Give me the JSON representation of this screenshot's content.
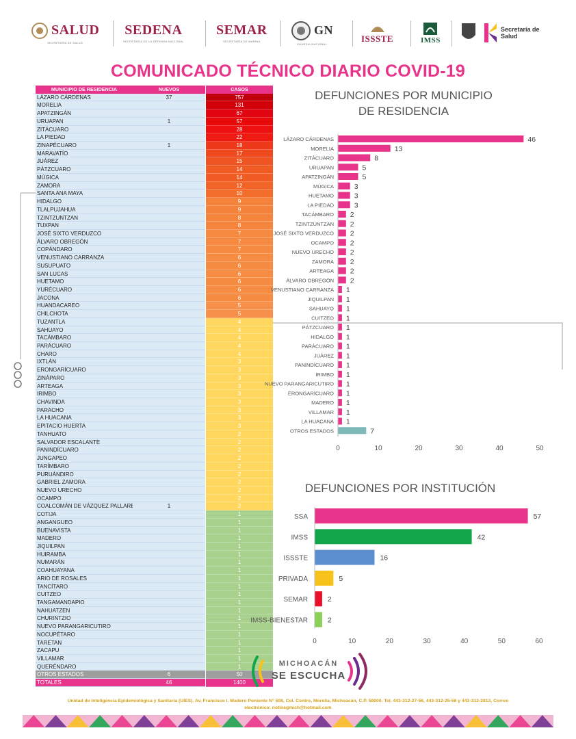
{
  "header": {
    "logos": [
      {
        "name": "SALUD",
        "sub": "SECRETARÍA DE SALUD",
        "color": "#9b2247"
      },
      {
        "name": "SEDENA",
        "sub": "SECRETARÍA DE LA DEFENSA NACIONAL",
        "color": "#9b2247"
      },
      {
        "name": "SEMAR",
        "sub": "SECRETARÍA DE MARINA",
        "color": "#9b2247"
      },
      {
        "name": "GN",
        "sub": "GUARDIA NACIONAL",
        "color": "#333333"
      },
      {
        "name": "ISSSTE",
        "sub": "",
        "color": "#9b2247"
      },
      {
        "name": "IMSS",
        "sub": "",
        "color": "#1a5c3a"
      },
      {
        "name": "Secretaría de Salud",
        "sub": "",
        "color": "#333333"
      }
    ]
  },
  "title": "COMUNICADO TÉCNICO DIARIO COVID-19",
  "table": {
    "headers": {
      "municipio": "MUNICIPIO DE RESIDENCIA",
      "nuevos": "NUEVOS",
      "casos": "CASOS"
    },
    "rows": [
      {
        "m": "LÁZARO CÁRDENAS",
        "n": "37",
        "c": "757",
        "color": "#c0000a"
      },
      {
        "m": "MORELIA",
        "n": "",
        "c": "131",
        "color": "#d20008"
      },
      {
        "m": "APATZINGÁN",
        "n": "",
        "c": "67",
        "color": "#e00510"
      },
      {
        "m": "URUAPAN",
        "n": "1",
        "c": "57",
        "color": "#e80a0a"
      },
      {
        "m": "ZITÁCUARO",
        "n": "",
        "c": "28",
        "color": "#ee1010"
      },
      {
        "m": "LA PIEDAD",
        "n": "",
        "c": "22",
        "color": "#ef1a12"
      },
      {
        "m": "ZINAPÉCUARO",
        "n": "1",
        "c": "18",
        "color": "#ee3a1a"
      },
      {
        "m": "MARAVATÍO",
        "n": "",
        "c": "17",
        "color": "#ee4a1e"
      },
      {
        "m": "JUÁREZ",
        "n": "",
        "c": "15",
        "color": "#ee5522"
      },
      {
        "m": "PÁTZCUARO",
        "n": "",
        "c": "14",
        "color": "#f05c24"
      },
      {
        "m": "MÚGICA",
        "n": "",
        "c": "14",
        "color": "#f05c24"
      },
      {
        "m": "ZAMORA",
        "n": "",
        "c": "12",
        "color": "#f26428"
      },
      {
        "m": "SANTA ANA MAYA",
        "n": "",
        "c": "10",
        "color": "#f36e2b"
      },
      {
        "m": "HIDALGO",
        "n": "",
        "c": "9",
        "color": "#f5823a"
      },
      {
        "m": "TLALPUJAHUA",
        "n": "",
        "c": "9",
        "color": "#f5823a"
      },
      {
        "m": "TZINTZUNTZAN",
        "n": "",
        "c": "8",
        "color": "#f5853c"
      },
      {
        "m": "TUXPAN",
        "n": "",
        "c": "8",
        "color": "#f5853c"
      },
      {
        "m": "JOSÉ SIXTO VERDUZCO",
        "n": "",
        "c": "7",
        "color": "#f58a40"
      },
      {
        "m": "ÁLVARO OBREGÓN",
        "n": "",
        "c": "7",
        "color": "#f58a40"
      },
      {
        "m": "COPÁNDARO",
        "n": "",
        "c": "7",
        "color": "#f58a40"
      },
      {
        "m": "VENUSTIANO CARRANZA",
        "n": "",
        "c": "6",
        "color": "#f58c42"
      },
      {
        "m": "SUSUPUATO",
        "n": "",
        "c": "6",
        "color": "#f58c42"
      },
      {
        "m": "SAN LUCAS",
        "n": "",
        "c": "6",
        "color": "#f58c42"
      },
      {
        "m": "HUETAMO",
        "n": "",
        "c": "6",
        "color": "#f58c42"
      },
      {
        "m": "YURÉCUARO",
        "n": "",
        "c": "6",
        "color": "#f58c42"
      },
      {
        "m": "JACONA",
        "n": "",
        "c": "6",
        "color": "#f58c42"
      },
      {
        "m": "HUANDACAREO",
        "n": "",
        "c": "5",
        "color": "#f6904a"
      },
      {
        "m": "CHILCHOTA",
        "n": "",
        "c": "5",
        "color": "#f6904a"
      },
      {
        "m": "TUZANTLA",
        "n": "",
        "c": "4",
        "color": "#ffd75e"
      },
      {
        "m": "SAHUAYO",
        "n": "",
        "c": "4",
        "color": "#ffd75e"
      },
      {
        "m": "TACÁMBARO",
        "n": "",
        "c": "4",
        "color": "#ffd75e"
      },
      {
        "m": "PARÁCUARO",
        "n": "",
        "c": "4",
        "color": "#ffd75e"
      },
      {
        "m": "CHARO",
        "n": "",
        "c": "4",
        "color": "#ffd75e"
      },
      {
        "m": "IXTLÁN",
        "n": "",
        "c": "3",
        "color": "#ffd75e"
      },
      {
        "m": "ERONGARÍCUARO",
        "n": "",
        "c": "3",
        "color": "#ffd75e"
      },
      {
        "m": "ZINÁPARO",
        "n": "",
        "c": "3",
        "color": "#ffd75e"
      },
      {
        "m": "ARTEAGA",
        "n": "",
        "c": "3",
        "color": "#ffd75e"
      },
      {
        "m": "IRIMBO",
        "n": "",
        "c": "3",
        "color": "#ffd75e"
      },
      {
        "m": "CHAVINDA",
        "n": "",
        "c": "3",
        "color": "#ffd75e"
      },
      {
        "m": "PARACHO",
        "n": "",
        "c": "3",
        "color": "#ffd75e"
      },
      {
        "m": "LA HUACANA",
        "n": "",
        "c": "3",
        "color": "#ffd75e"
      },
      {
        "m": "EPITACIO HUERTA",
        "n": "",
        "c": "3",
        "color": "#ffd75e"
      },
      {
        "m": "TANHUATO",
        "n": "",
        "c": "2",
        "color": "#ffd75e"
      },
      {
        "m": "SALVADOR ESCALANTE",
        "n": "",
        "c": "2",
        "color": "#ffd75e"
      },
      {
        "m": "PANINDÍCUARO",
        "n": "",
        "c": "2",
        "color": "#ffd75e"
      },
      {
        "m": "JUNGAPEO",
        "n": "",
        "c": "2",
        "color": "#ffd75e"
      },
      {
        "m": "TARÍMBARO",
        "n": "",
        "c": "2",
        "color": "#ffd75e"
      },
      {
        "m": "PURUÁNDIRO",
        "n": "",
        "c": "2",
        "color": "#ffd75e"
      },
      {
        "m": "GABRIEL ZAMORA",
        "n": "",
        "c": "2",
        "color": "#ffd75e"
      },
      {
        "m": "NUEVO URECHO",
        "n": "",
        "c": "2",
        "color": "#ffd75e"
      },
      {
        "m": "OCAMPO",
        "n": "",
        "c": "2",
        "color": "#ffd75e"
      },
      {
        "m": "COALCOMÁN DE VÁZQUEZ PALLARES",
        "n": "1",
        "c": "2",
        "color": "#ffd75e"
      },
      {
        "m": "COTIJA",
        "n": "",
        "c": "1",
        "color": "#a9d18e"
      },
      {
        "m": "ANGANGUEO",
        "n": "",
        "c": "1",
        "color": "#a9d18e"
      },
      {
        "m": "BUENAVISTA",
        "n": "",
        "c": "1",
        "color": "#a9d18e"
      },
      {
        "m": "MADERO",
        "n": "",
        "c": "1",
        "color": "#a9d18e"
      },
      {
        "m": "JIQUILPAN",
        "n": "",
        "c": "1",
        "color": "#a9d18e"
      },
      {
        "m": "HUIRAMBA",
        "n": "",
        "c": "1",
        "color": "#a9d18e"
      },
      {
        "m": "NUMARÁN",
        "n": "",
        "c": "1",
        "color": "#a9d18e"
      },
      {
        "m": "COAHUAYANA",
        "n": "",
        "c": "1",
        "color": "#a9d18e"
      },
      {
        "m": "ARIO DE ROSALES",
        "n": "",
        "c": "1",
        "color": "#a9d18e"
      },
      {
        "m": "TANCÍTARO",
        "n": "",
        "c": "1",
        "color": "#a9d18e"
      },
      {
        "m": "CUITZEO",
        "n": "",
        "c": "1",
        "color": "#a9d18e"
      },
      {
        "m": "TANGAMANDAPIO",
        "n": "",
        "c": "1",
        "color": "#a9d18e"
      },
      {
        "m": "NAHUATZEN",
        "n": "",
        "c": "1",
        "color": "#a9d18e"
      },
      {
        "m": "CHURINTZIO",
        "n": "",
        "c": "1",
        "color": "#a9d18e"
      },
      {
        "m": "NUEVO PARANGARICUTIRO",
        "n": "",
        "c": "1",
        "color": "#a9d18e"
      },
      {
        "m": "NOCUPÉTARO",
        "n": "",
        "c": "1",
        "color": "#a9d18e"
      },
      {
        "m": "TARETAN",
        "n": "",
        "c": "1",
        "color": "#a9d18e"
      },
      {
        "m": "ZACAPU",
        "n": "",
        "c": "1",
        "color": "#a9d18e"
      },
      {
        "m": "VILLAMAR",
        "n": "",
        "c": "1",
        "color": "#a9d18e"
      },
      {
        "m": "QUERÉNDARO",
        "n": "",
        "c": "1",
        "color": "#a9d18e"
      }
    ],
    "otros": {
      "m": "OTROS ESTADOS",
      "n": "6",
      "c": "50"
    },
    "totales": {
      "m": "TOTALES",
      "n": "46",
      "c": "1400"
    }
  },
  "chart_data": [
    {
      "type": "bar",
      "orientation": "horizontal",
      "title": "DEFUNCIONES POR MUNICIPIO DE RESIDENCIA",
      "title_lines": [
        "DEFUNCIONES POR MUNICIPIO",
        "DE RESIDENCIA"
      ],
      "categories": [
        "LÁZARO CÁRDENAS",
        "MORELIA",
        "ZITÁCUARO",
        "URUAPAN",
        "APATZINGÁN",
        "MÚGICA",
        "HUETAMO",
        "LA PIEDAD",
        "TACÁMBARO",
        "TZINTZUNTZAN",
        "JOSÉ SIXTO VERDUZCO",
        "OCAMPO",
        "NUEVO URECHO",
        "ZAMORA",
        "ARTEAGA",
        "ÁLVARO OBREGÓN",
        "VENUSTIANO CARRANZA",
        "JIQUILPAN",
        "SAHUAYO",
        "CUITZEO",
        "PÁTZCUARO",
        "HIDALGO",
        "PARÁCUARO",
        "JUÁREZ",
        "PANINDÍCUARO",
        "IRIMBO",
        "NUEVO PARANGARICUTIRO",
        "ERONGARÍCUARO",
        "MADERO",
        "VILLAMAR",
        "LA HUACANA",
        "OTROS ESTADOS"
      ],
      "values": [
        46,
        13,
        8,
        5,
        5,
        3,
        3,
        3,
        2,
        2,
        2,
        2,
        2,
        2,
        2,
        2,
        1,
        1,
        1,
        1,
        1,
        1,
        1,
        1,
        1,
        1,
        1,
        1,
        1,
        1,
        1,
        7
      ],
      "colors": {
        "default": "#e8338a",
        "last": "#7fb8b8"
      },
      "xlim": [
        0,
        50
      ],
      "xticks": [
        0,
        10,
        20,
        30,
        40,
        50
      ]
    },
    {
      "type": "bar",
      "orientation": "horizontal",
      "title": "DEFUNCIONES POR INSTITUCIÓN",
      "categories": [
        "SSA",
        "IMSS",
        "ISSSTE",
        "PRIVADA",
        "SEMAR",
        "IMSS-BIENESTAR"
      ],
      "values": [
        57,
        42,
        16,
        5,
        2,
        2
      ],
      "colors": [
        "#e8338a",
        "#12a54a",
        "#5b8fd0",
        "#f7c21c",
        "#e8102a",
        "#8ccf55"
      ],
      "xlim": [
        0,
        60
      ],
      "xticks": [
        0,
        10,
        20,
        30,
        40,
        50,
        60
      ]
    }
  ],
  "campaign": {
    "line1": "MICHOACÁN",
    "line2": "SE ESCUCHA"
  },
  "footer": {
    "line1": "Unidad de Inteligencia Epidemiológica y Sanitaria (UIES). Av. Francisco I. Madero Poniente N° 508, Col. Centro, Morelia, Michoacán, C.P. 58000. Tel. 443-312-27-56, 443-312-25-56 y 443-312-2813, Correo",
    "line2": "electrónico: notinegmich@hotmail.com"
  }
}
